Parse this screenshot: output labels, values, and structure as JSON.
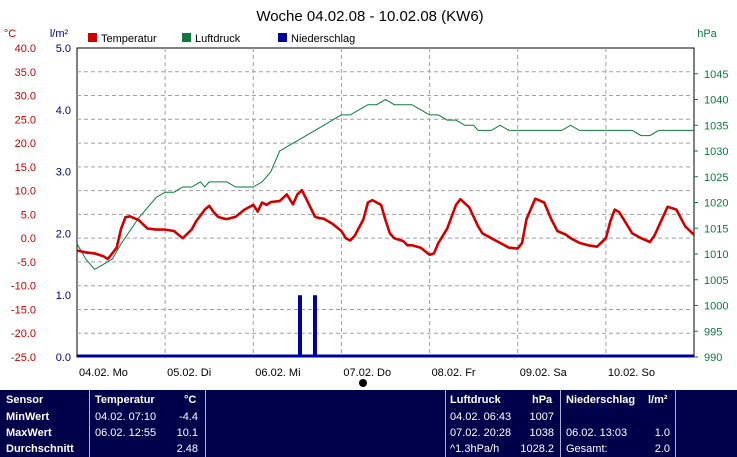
{
  "chart_data": {
    "type": "line",
    "title": "Woche 04.02.08 - 10.02.08 (KW6)",
    "units": {
      "temperature": "°C",
      "rain": "l/m²",
      "pressure": "hPa"
    },
    "legend": [
      "Temperatur",
      "Luftdruck",
      "Niederschlag"
    ],
    "legend_placement": "top-left",
    "grid": true,
    "x_range": [
      0,
      7
    ],
    "x_ticks": [
      "04.02. Mo",
      "05.02. Di",
      "06.02. Mi",
      "07.02. Do",
      "08.02. Fr",
      "09.02. Sa",
      "10.02. So"
    ],
    "y_left_temperature": {
      "range": [
        -25,
        40
      ],
      "ticks": [
        "40.0",
        "35.0",
        "30.0",
        "25.0",
        "20.0",
        "15.0",
        "10.0",
        "5.0",
        "0.0",
        "-5.0",
        "-10.0",
        "-15.0",
        "-20.0",
        "-25.0"
      ]
    },
    "y_left_rain": {
      "range": [
        0,
        5
      ],
      "ticks": [
        "5.0",
        "4.0",
        "3.0",
        "2.0",
        "1.0",
        "0.0"
      ]
    },
    "y_right_pressure": {
      "range": [
        990,
        1050
      ],
      "ticks": [
        "1045",
        "1040",
        "1035",
        "1030",
        "1025",
        "1020",
        "1015",
        "1010",
        "1005",
        "1000",
        "995",
        "990"
      ]
    },
    "series": [
      {
        "name": "Temperatur",
        "color": "#d00000",
        "x": [
          0,
          0.1,
          0.2,
          0.3,
          0.35,
          0.45,
          0.5,
          0.55,
          0.6,
          0.7,
          0.8,
          0.9,
          1.0,
          1.1,
          1.2,
          1.3,
          1.35,
          1.45,
          1.5,
          1.55,
          1.6,
          1.65,
          1.7,
          1.8,
          1.9,
          2.0,
          2.05,
          2.1,
          2.15,
          2.2,
          2.3,
          2.38,
          2.45,
          2.5,
          2.55,
          2.6,
          2.7,
          2.75,
          2.8,
          2.9,
          3.0,
          3.05,
          3.1,
          3.15,
          3.25,
          3.3,
          3.35,
          3.45,
          3.5,
          3.55,
          3.6,
          3.7,
          3.75,
          3.8,
          3.9,
          4.0,
          4.05,
          4.1,
          4.2,
          4.3,
          4.35,
          4.45,
          4.55,
          4.6,
          4.7,
          4.8,
          4.9,
          5.0,
          5.05,
          5.1,
          5.2,
          5.3,
          5.38,
          5.45,
          5.55,
          5.6,
          5.7,
          5.8,
          5.9,
          6.0,
          6.05,
          6.1,
          6.15,
          6.2,
          6.3,
          6.4,
          6.5,
          6.55,
          6.6,
          6.7,
          6.8,
          6.9,
          7.0
        ],
        "values": [
          -2.6,
          -3.0,
          -3.2,
          -3.8,
          -4.4,
          -2.0,
          2.0,
          4.4,
          4.6,
          3.8,
          2.0,
          1.8,
          1.8,
          1.5,
          0.0,
          1.8,
          3.5,
          6.0,
          6.8,
          5.5,
          4.5,
          4.2,
          4.0,
          4.5,
          6.0,
          7.0,
          5.6,
          7.5,
          7.0,
          7.6,
          7.8,
          9.2,
          7.1,
          9.2,
          10.1,
          8.3,
          4.5,
          4.2,
          4.1,
          3.0,
          1.5,
          0.0,
          -0.5,
          0.5,
          4.0,
          7.5,
          8.0,
          7.0,
          3.8,
          1.0,
          0.0,
          -0.6,
          -1.5,
          -1.5,
          -2.0,
          -3.5,
          -3.2,
          -1.0,
          2.0,
          7.0,
          8.2,
          6.5,
          2.5,
          1.0,
          0.0,
          -1.0,
          -2.0,
          -2.2,
          -1.0,
          4.0,
          8.3,
          7.5,
          4.0,
          1.5,
          0.7,
          0.0,
          -1.0,
          -1.5,
          -1.8,
          0.0,
          3.5,
          6.0,
          5.5,
          4.0,
          1.0,
          0.0,
          -0.8,
          0.5,
          2.5,
          6.6,
          6.0,
          2.5,
          0.7
        ]
      },
      {
        "name": "Luftdruck",
        "color": "#0e7a3e",
        "x": [
          0,
          0.1,
          0.2,
          0.3,
          0.4,
          0.5,
          0.7,
          0.9,
          1.0,
          1.1,
          1.2,
          1.3,
          1.4,
          1.45,
          1.5,
          1.55,
          1.6,
          1.7,
          1.8,
          1.9,
          2.0,
          2.1,
          2.2,
          2.3,
          2.4,
          2.5,
          2.6,
          2.7,
          2.8,
          2.9,
          3.0,
          3.1,
          3.2,
          3.3,
          3.4,
          3.5,
          3.6,
          3.7,
          3.8,
          3.9,
          4.0,
          4.1,
          4.2,
          4.3,
          4.4,
          4.5,
          4.55,
          4.6,
          4.7,
          4.8,
          4.9,
          5.0,
          5.1,
          5.2,
          5.3,
          5.4,
          5.5,
          5.6,
          5.7,
          5.8,
          5.9,
          6.0,
          6.1,
          6.2,
          6.3,
          6.4,
          6.5,
          6.6,
          6.7,
          6.8,
          6.9,
          7.0
        ],
        "values": [
          1012,
          1009,
          1007,
          1008,
          1009,
          1012,
          1017,
          1021,
          1022,
          1022,
          1023,
          1023,
          1024,
          1023,
          1024,
          1024,
          1024,
          1024,
          1023,
          1023,
          1023,
          1024,
          1026,
          1030,
          1031,
          1032,
          1033,
          1034,
          1035,
          1036,
          1037,
          1037,
          1038,
          1039,
          1039,
          1040,
          1039,
          1039,
          1039,
          1038,
          1037,
          1037,
          1036,
          1036,
          1035,
          1035,
          1034,
          1034,
          1034,
          1035,
          1034,
          1034,
          1034,
          1034,
          1034,
          1034,
          1034,
          1035,
          1034,
          1034,
          1034,
          1034,
          1034,
          1034,
          1034,
          1033,
          1033,
          1034,
          1034,
          1034,
          1034,
          1034
        ]
      },
      {
        "name": "Niederschlag",
        "color": "#00009c",
        "type": "bar",
        "x": [
          2.53,
          2.7
        ],
        "values": [
          1.0,
          1.0
        ]
      }
    ]
  },
  "stats": {
    "sensor_header": "Sensor",
    "row_labels": [
      "MinWert",
      "MaxWert",
      "Durchschnitt"
    ],
    "temperature": {
      "header": "Temperatur",
      "unit": "°C",
      "rows": [
        {
          "time": "04.02.  07:10",
          "value": "-4.4"
        },
        {
          "time": "06.02.  12:55",
          "value": "10.1"
        },
        {
          "time": "",
          "value": "2.48"
        }
      ]
    },
    "pressure": {
      "header": "Luftdruck",
      "unit": "hPa",
      "rows": [
        {
          "time": "04.02.  06:43",
          "value": "1007"
        },
        {
          "time": "07.02.  20:28",
          "value": "1038"
        },
        {
          "time": "^1.3hPa/h",
          "value": "1028.2"
        }
      ]
    },
    "rain": {
      "header": "Niederschlag",
      "unit": "l/m²",
      "rows": [
        {
          "time": "",
          "value": ""
        },
        {
          "time": "06.02.  13:03",
          "value": "1.0"
        },
        {
          "time": "Gesamt:",
          "value": "2.0"
        }
      ]
    }
  }
}
